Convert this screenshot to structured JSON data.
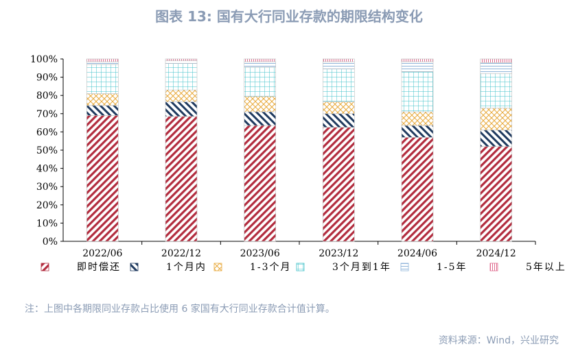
{
  "title": "图表 13: 国有大行同业存款的期限结构变化",
  "note": "注：上图中各期限同业存款占比使用 6 家国有大行同业存款合计值计算。",
  "source": "资料来源：Wind，兴业研究",
  "chart_data": {
    "type": "bar",
    "stacked": true,
    "categories": [
      "2022/06",
      "2022/12",
      "2023/06",
      "2023/12",
      "2024/06",
      "2024/12"
    ],
    "ylim": [
      0,
      100
    ],
    "yticks": [
      "0%",
      "10%",
      "20%",
      "30%",
      "40%",
      "50%",
      "60%",
      "70%",
      "80%",
      "90%",
      "100%"
    ],
    "legend_position": "bottom",
    "series": [
      {
        "name": "即时偿还",
        "color": "#b22c3e",
        "values": [
          69,
          68.5,
          63.5,
          62.5,
          57,
          52
        ]
      },
      {
        "name": "1个月内",
        "color": "#1f3a5f",
        "values": [
          5.5,
          8,
          7.5,
          7.5,
          6.5,
          9
        ]
      },
      {
        "name": "1-3个月",
        "color": "#e8a93a",
        "values": [
          6.5,
          6.5,
          8.5,
          6.5,
          7.5,
          12
        ]
      },
      {
        "name": "3个月到1年",
        "color": "#3ec0c8",
        "values": [
          16,
          14.5,
          16,
          18,
          22,
          19
        ]
      },
      {
        "name": "1-5年",
        "color": "#8fb4d9",
        "values": [
          1.5,
          1.5,
          3,
          4,
          5.5,
          6
        ]
      },
      {
        "name": "5年以上",
        "color": "#e06a8e",
        "values": [
          1.5,
          1,
          1.5,
          1.5,
          1.5,
          2
        ]
      }
    ]
  }
}
